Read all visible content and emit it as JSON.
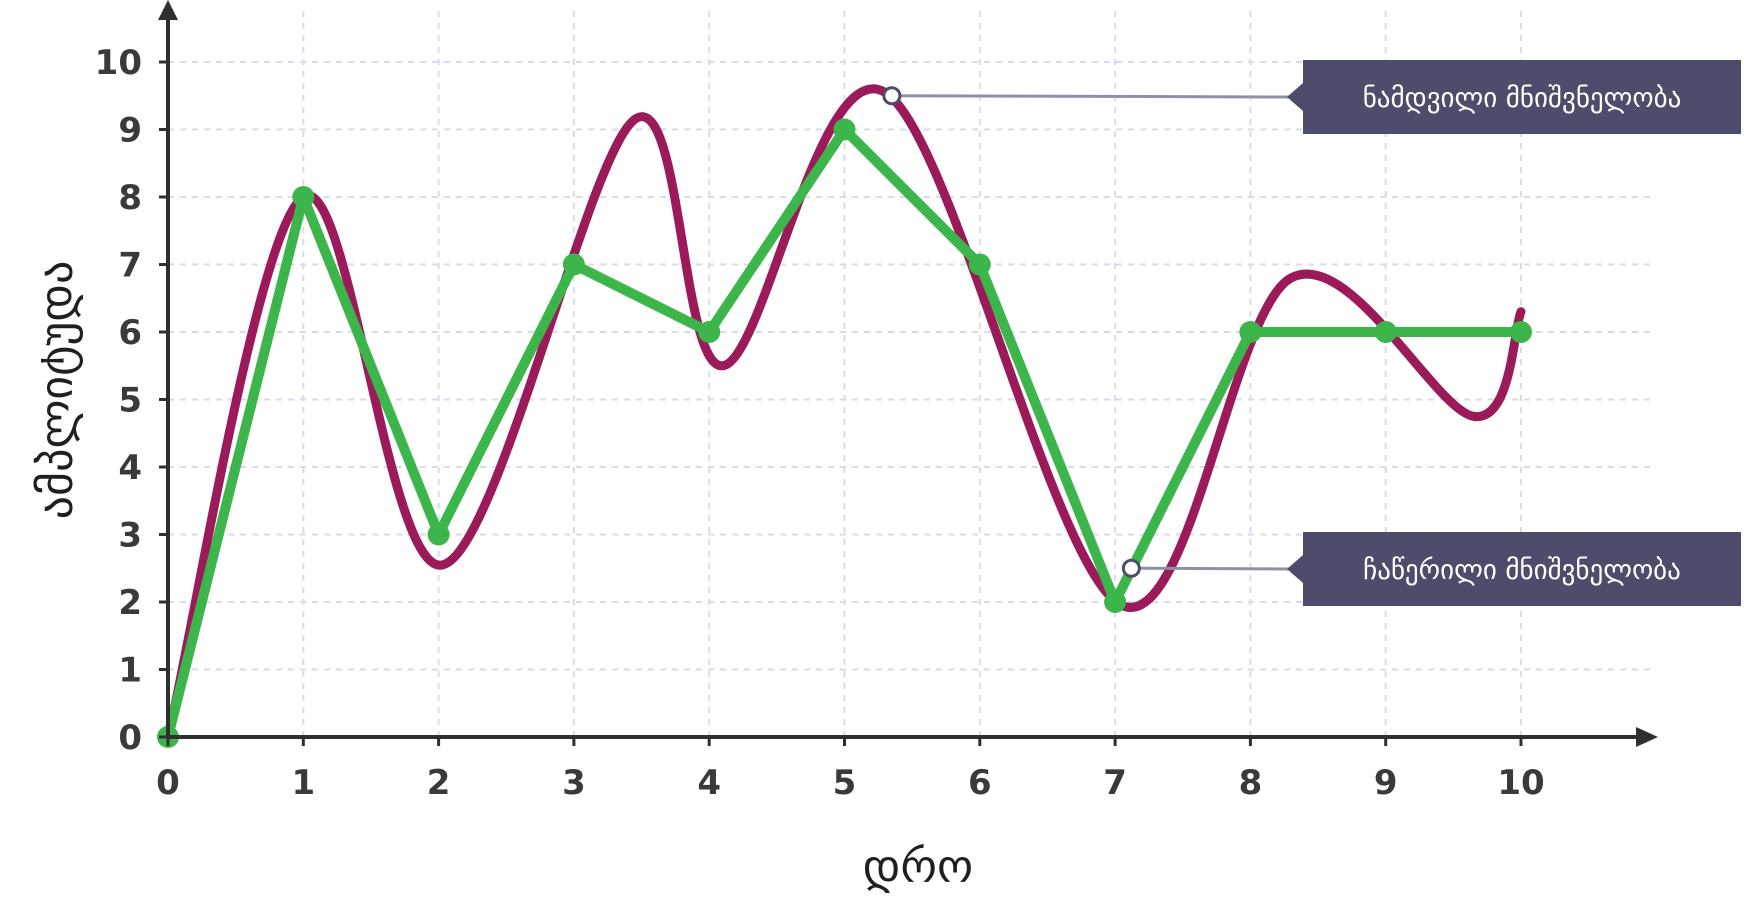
{
  "chart_data": {
    "type": "line",
    "title": "",
    "xlabel": "დრო",
    "ylabel": "ამპლიტუდა",
    "xlim": [
      0,
      10
    ],
    "ylim": [
      0,
      10
    ],
    "x_ticks": [
      "0",
      "1",
      "2",
      "3",
      "4",
      "5",
      "6",
      "7",
      "8",
      "9",
      "10"
    ],
    "y_ticks": [
      "0",
      "1",
      "2",
      "3",
      "4",
      "5",
      "6",
      "7",
      "8",
      "9",
      "10"
    ],
    "grid": true,
    "series": [
      {
        "name": "ნამდვილი მნიშვნელობა",
        "style": "smooth",
        "color": "#9b1b5a",
        "x": [
          0,
          1,
          2.03,
          3.45,
          4.1,
          5.3,
          7.05,
          8.3,
          9.65,
          10
        ],
        "y": [
          0,
          8,
          2.55,
          9.15,
          5.5,
          9.55,
          1.95,
          6.8,
          4.75,
          6.3
        ]
      },
      {
        "name": "ჩაწერილი მნიშვნელობა",
        "style": "linear-markers",
        "color": "#3cb54a",
        "x": [
          0,
          1,
          2,
          3,
          4,
          5,
          6,
          7,
          8,
          9,
          10
        ],
        "y": [
          0,
          8,
          3,
          7,
          6,
          9,
          7,
          2,
          6,
          6,
          6
        ]
      }
    ],
    "annotations": [
      {
        "text": "ნამდვილი მნიშვნელობა",
        "point_x": 5.35,
        "point_y": 9.5
      },
      {
        "text": "ჩაწერილი მნიშვნელობა",
        "point_x": 7.12,
        "point_y": 2.5
      }
    ],
    "colors": {
      "axis": "#2f2f2f",
      "grid": "#d9dbe8",
      "callout_bg": "#4d4d6b",
      "leader": "#8f90a6"
    }
  }
}
